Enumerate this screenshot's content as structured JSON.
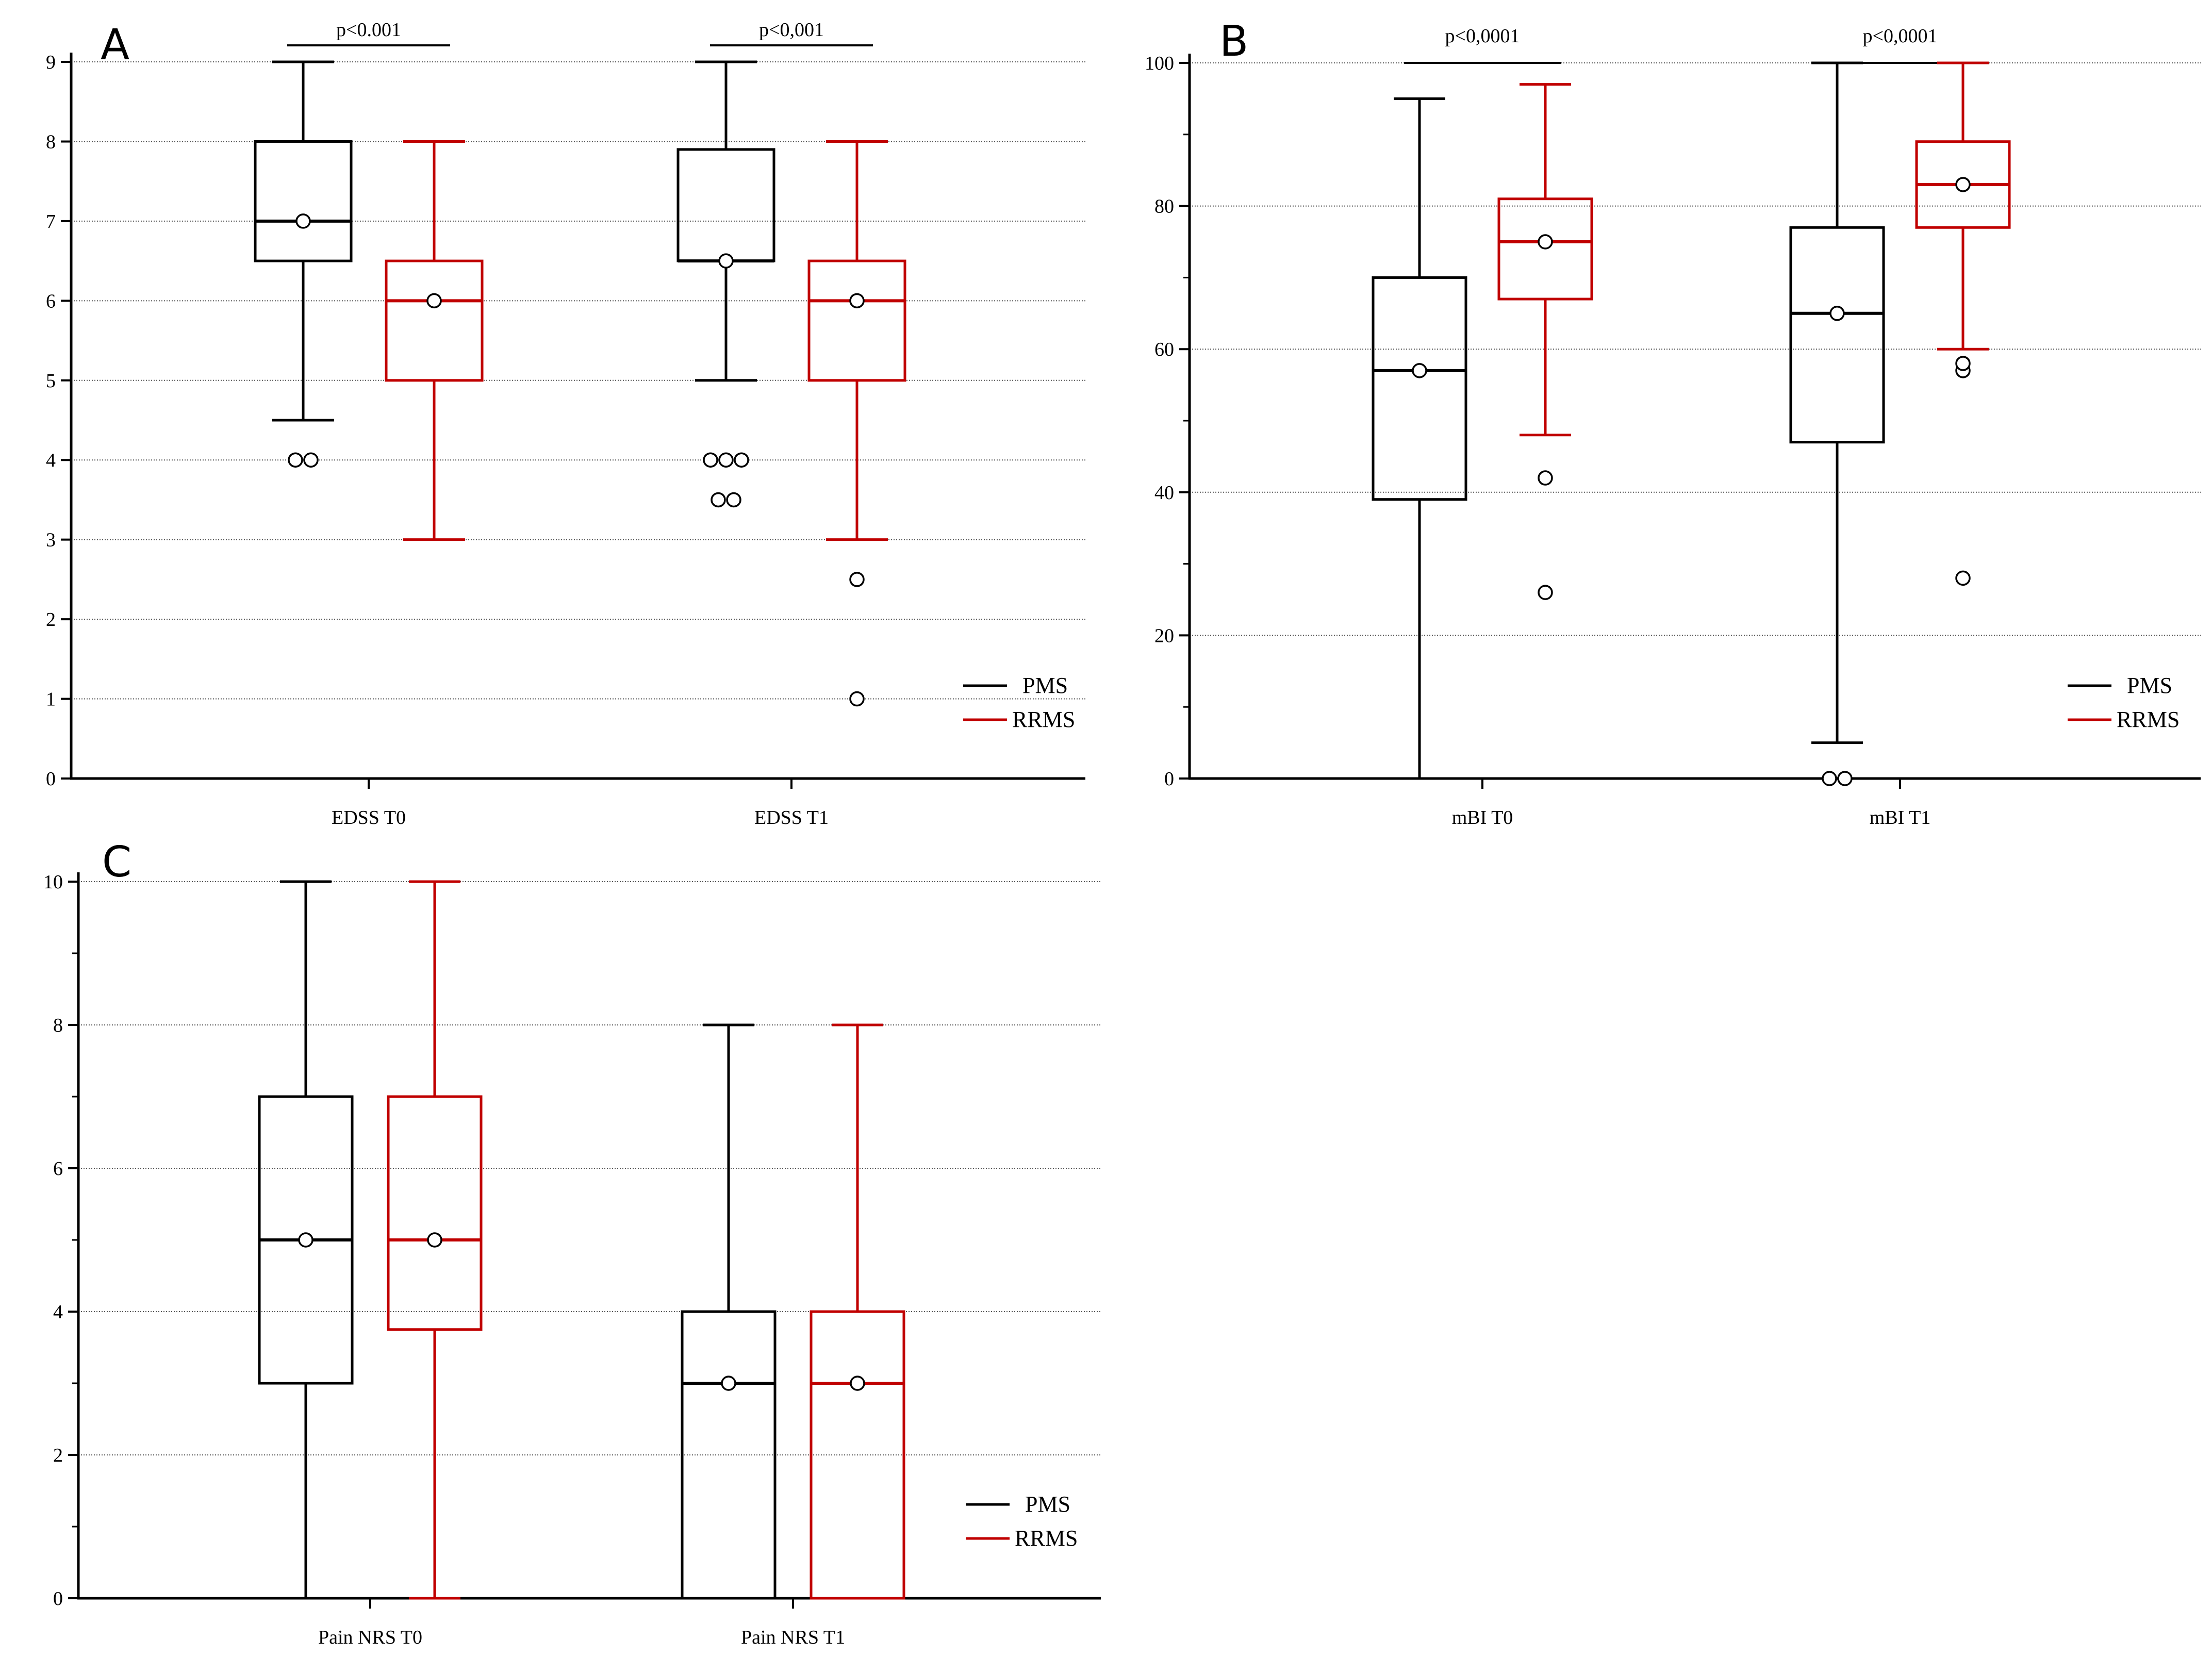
{
  "colors": {
    "PMS": "#000000",
    "RRMS": "#c00000",
    "grid": "#555555"
  },
  "chart_data": [
    {
      "panel": "A",
      "type": "box",
      "ylim": [
        0,
        9
      ],
      "yticks": [
        "0",
        "1",
        "2",
        "3",
        "4",
        "5",
        "6",
        "7",
        "8",
        "9"
      ],
      "grid": true,
      "legend": [
        "PMS",
        "RRMS"
      ],
      "legend_placement": "bottom-right",
      "categories": [
        {
          "label": "EDSS T0",
          "significance": "p<0.001",
          "boxes": [
            {
              "series": "PMS",
              "min": 4.5,
              "q1": 6.5,
              "median": 7,
              "q3": 8,
              "max": 9,
              "mean": 7,
              "outliers": [
                4,
                4
              ]
            },
            {
              "series": "RRMS",
              "min": 3,
              "q1": 5,
              "median": 6,
              "q3": 6.5,
              "max": 8,
              "mean": 6,
              "outliers": []
            }
          ]
        },
        {
          "label": "EDSS T1",
          "significance": "p<0,001",
          "boxes": [
            {
              "series": "PMS",
              "min": 5,
              "q1": 6.5,
              "median": 6.5,
              "q3": 7.9,
              "max": 9,
              "mean": 6.5,
              "outliers": [
                4,
                4,
                4,
                3.5,
                3.5
              ]
            },
            {
              "series": "RRMS",
              "min": 3,
              "q1": 5,
              "median": 6,
              "q3": 6.5,
              "max": 8,
              "mean": 6,
              "outliers": [
                2.5,
                1
              ]
            }
          ]
        }
      ]
    },
    {
      "panel": "B",
      "type": "box",
      "ylim": [
        0,
        100
      ],
      "yticks": [
        "0",
        "20",
        "40",
        "60",
        "80",
        "100"
      ],
      "grid": true,
      "legend": [
        "PMS",
        "RRMS"
      ],
      "legend_placement": "bottom-right",
      "categories": [
        {
          "label": "mBI T0",
          "significance": "p<0,0001",
          "boxes": [
            {
              "series": "PMS",
              "min": 0,
              "q1": 39,
              "median": 57,
              "q3": 70,
              "max": 95,
              "mean": 57,
              "outliers": []
            },
            {
              "series": "RRMS",
              "min": 48,
              "q1": 67,
              "median": 75,
              "q3": 81,
              "max": 97,
              "mean": 75,
              "outliers": [
                42,
                26
              ]
            }
          ]
        },
        {
          "label": "mBI T1",
          "significance": "p<0,0001",
          "boxes": [
            {
              "series": "PMS",
              "min": 5,
              "q1": 47,
              "median": 65,
              "q3": 77,
              "max": 100,
              "mean": 65,
              "outliers": [
                0,
                0
              ]
            },
            {
              "series": "RRMS",
              "min": 60,
              "q1": 77,
              "median": 83,
              "q3": 89,
              "max": 100,
              "mean": 83,
              "outliers": [
                57,
                58,
                28
              ]
            }
          ]
        }
      ]
    },
    {
      "panel": "C",
      "type": "box",
      "ylim": [
        0,
        10
      ],
      "yticks": [
        "0",
        "2",
        "4",
        "6",
        "8",
        "10"
      ],
      "grid": true,
      "legend": [
        "PMS",
        "RRMS"
      ],
      "legend_placement": "bottom-right",
      "categories": [
        {
          "label": "Pain NRS T0",
          "significance": "",
          "boxes": [
            {
              "series": "PMS",
              "min": 0,
              "q1": 3,
              "median": 5,
              "q3": 7,
              "max": 10,
              "mean": 5,
              "outliers": []
            },
            {
              "series": "RRMS",
              "min": 0,
              "q1": 3.75,
              "median": 5,
              "q3": 7,
              "max": 10,
              "mean": 5,
              "outliers": []
            }
          ]
        },
        {
          "label": "Pain NRS T1",
          "significance": "",
          "boxes": [
            {
              "series": "PMS",
              "min": 0,
              "q1": 0,
              "median": 3,
              "q3": 4,
              "max": 8,
              "mean": 3,
              "outliers": []
            },
            {
              "series": "RRMS",
              "min": 0,
              "q1": 0,
              "median": 3,
              "q3": 4,
              "max": 8,
              "mean": 3,
              "outliers": []
            }
          ]
        }
      ]
    }
  ]
}
